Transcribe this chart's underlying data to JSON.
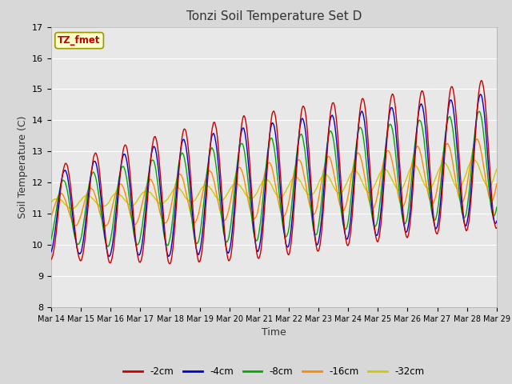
{
  "title": "Tonzi Soil Temperature Set D",
  "xlabel": "Time",
  "ylabel": "Soil Temperature (C)",
  "ylim": [
    8.0,
    17.0
  ],
  "yticks": [
    8.0,
    9.0,
    10.0,
    11.0,
    12.0,
    13.0,
    14.0,
    15.0,
    16.0,
    17.0
  ],
  "xtick_labels": [
    "Mar 14",
    "Mar 15",
    "Mar 16",
    "Mar 17",
    "Mar 18",
    "Mar 19",
    "Mar 20",
    "Mar 21",
    "Mar 22",
    "Mar 23",
    "Mar 24",
    "Mar 25",
    "Mar 26",
    "Mar 27",
    "Mar 28",
    "Mar 29"
  ],
  "legend_entries": [
    "-2cm",
    "-4cm",
    "-8cm",
    "-16cm",
    "-32cm"
  ],
  "line_colors": [
    "#cc0000",
    "#0000cc",
    "#00aa00",
    "#ff8800",
    "#cccc00"
  ],
  "annotation_text": "TZ_fmet",
  "annotation_color": "#cc0000",
  "annotation_bg": "#ffffcc",
  "annotation_border": "#999900",
  "fig_bg_color": "#d8d8d8",
  "plot_bg_color": "#e8e8e8",
  "grid_color": "#ffffff",
  "num_points": 1440,
  "days": 15
}
